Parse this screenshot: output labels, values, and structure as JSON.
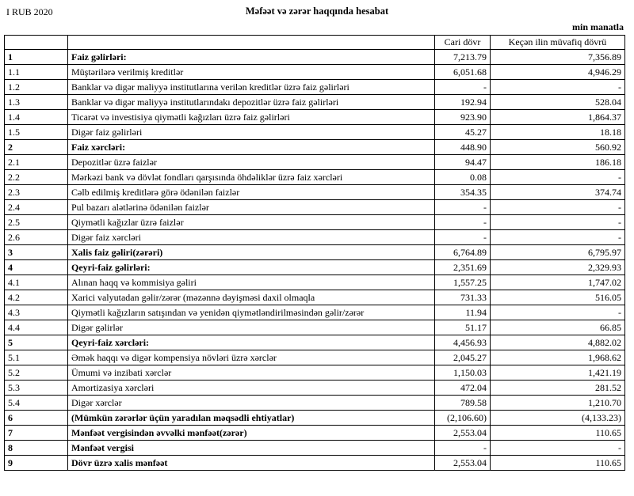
{
  "page": {
    "period_label": "I RUB 2020",
    "title": "Məfəət və zərər haqqında hesabat",
    "unit_label": "min manatla"
  },
  "table": {
    "columns": [
      "",
      "",
      "Cari dövr",
      "Keçən ilin müvafiq dövrü"
    ],
    "rows": [
      {
        "num": "1",
        "label": "Faiz gəlirləri:",
        "current": "7,213.79",
        "previous": "7,356.89",
        "bold": true
      },
      {
        "num": "1.1",
        "label": "Müştərilərə verilmiş kreditlər",
        "current": "6,051.68",
        "previous": "4,946.29",
        "bold": false
      },
      {
        "num": "1.2",
        "label": "Banklar və digər maliyyə institutlarına verilən kreditlər üzrə faiz gəlirləri",
        "current": "-",
        "previous": "-",
        "bold": false
      },
      {
        "num": "1.3",
        "label": "Banklar və digər maliyyə institutlarındakı depozitlər üzrə faiz gəlirləri",
        "current": "192.94",
        "previous": "528.04",
        "bold": false
      },
      {
        "num": "1.4",
        "label": "Ticarət və investisiya qiymətli kağızları üzrə faiz gəlirləri",
        "current": "923.90",
        "previous": "1,864.37",
        "bold": false
      },
      {
        "num": "1.5",
        "label": "Digər faiz gəlirləri",
        "current": "45.27",
        "previous": "18.18",
        "bold": false
      },
      {
        "num": "2",
        "label": "Faiz xərcləri:",
        "current": "448.90",
        "previous": "560.92",
        "bold": true
      },
      {
        "num": "2.1",
        "label": "Depozitlər üzrə faizlər",
        "current": "94.47",
        "previous": "186.18",
        "bold": false
      },
      {
        "num": "2.2",
        "label": "Mərkəzi bank və dövlət fondları qarşısında öhdəliklər üzrə faiz xərcləri",
        "current": "0.08",
        "previous": "-",
        "bold": false
      },
      {
        "num": "2.3",
        "label": "Cəlb edilmiş kreditlərə görə ödənilən faizlər",
        "current": "354.35",
        "previous": "374.74",
        "bold": false
      },
      {
        "num": "2.4",
        "label": "Pul bazarı alətlərinə ödənilən faizlər",
        "current": "-",
        "previous": "-",
        "bold": false
      },
      {
        "num": "2.5",
        "label": "Qiymətli kağızlar üzrə faizlər",
        "current": "-",
        "previous": "-",
        "bold": false
      },
      {
        "num": "2.6",
        "label": "Digər faiz xərcləri",
        "current": "-",
        "previous": "-",
        "bold": false
      },
      {
        "num": "3",
        "label": "Xalis faiz gəliri(zərəri)",
        "current": "6,764.89",
        "previous": "6,795.97",
        "bold": true
      },
      {
        "num": "4",
        "label": "Qeyri-faiz gəlirləri:",
        "current": "2,351.69",
        "previous": "2,329.93",
        "bold": true
      },
      {
        "num": "4.1",
        "label": "Alınan haqq və kommisiya gəliri",
        "current": "1,557.25",
        "previous": "1,747.02",
        "bold": false
      },
      {
        "num": "4.2",
        "label": "Xarici valyutadan gəlir/zərər (məzənnə dəyişməsi daxil olmaqla",
        "current": "731.33",
        "previous": "516.05",
        "bold": false
      },
      {
        "num": "4.3",
        "label": "Qiymətli kağızların satışından və yenidən qiymətləndirilməsindən gəlir/zərər",
        "current": "11.94",
        "previous": "-",
        "bold": false
      },
      {
        "num": "4.4",
        "label": "Digər gəlirlər",
        "current": "51.17",
        "previous": "66.85",
        "bold": false
      },
      {
        "num": "5",
        "label": "Qeyri-faiz xərcləri:",
        "current": "4,456.93",
        "previous": "4,882.02",
        "bold": true
      },
      {
        "num": "5.1",
        "label": "Əmək haqqı və digər kompensiya növləri üzrə xərclər",
        "current": "2,045.27",
        "previous": "1,968.62",
        "bold": false
      },
      {
        "num": "5.2",
        "label": "Ümumi və inzibati xərclər",
        "current": "1,150.03",
        "previous": "1,421.19",
        "bold": false
      },
      {
        "num": "5.3",
        "label": "Amortizasiya xərcləri",
        "current": "472.04",
        "previous": "281.52",
        "bold": false
      },
      {
        "num": "5.4",
        "label": "Digər xərclər",
        "current": "789.58",
        "previous": "1,210.70",
        "bold": false
      },
      {
        "num": "6",
        "label": "(Mümkün zərərlər üçün yaradılan məqsədli ehtiyatlar)",
        "current": "(2,106.60)",
        "previous": "(4,133.23)",
        "bold": true
      },
      {
        "num": "7",
        "label": "Mənfəət vergisindən əvvəlki mənfəət(zərər)",
        "current": "2,553.04",
        "previous": "110.65",
        "bold": true
      },
      {
        "num": "8",
        "label": "Mənfəət vergisi",
        "current": "-",
        "previous": "-",
        "bold": true
      },
      {
        "num": "9",
        "label": "Dövr üzrə xalis mənfəət",
        "current": "2,553.04",
        "previous": "110.65",
        "bold": true
      }
    ]
  }
}
